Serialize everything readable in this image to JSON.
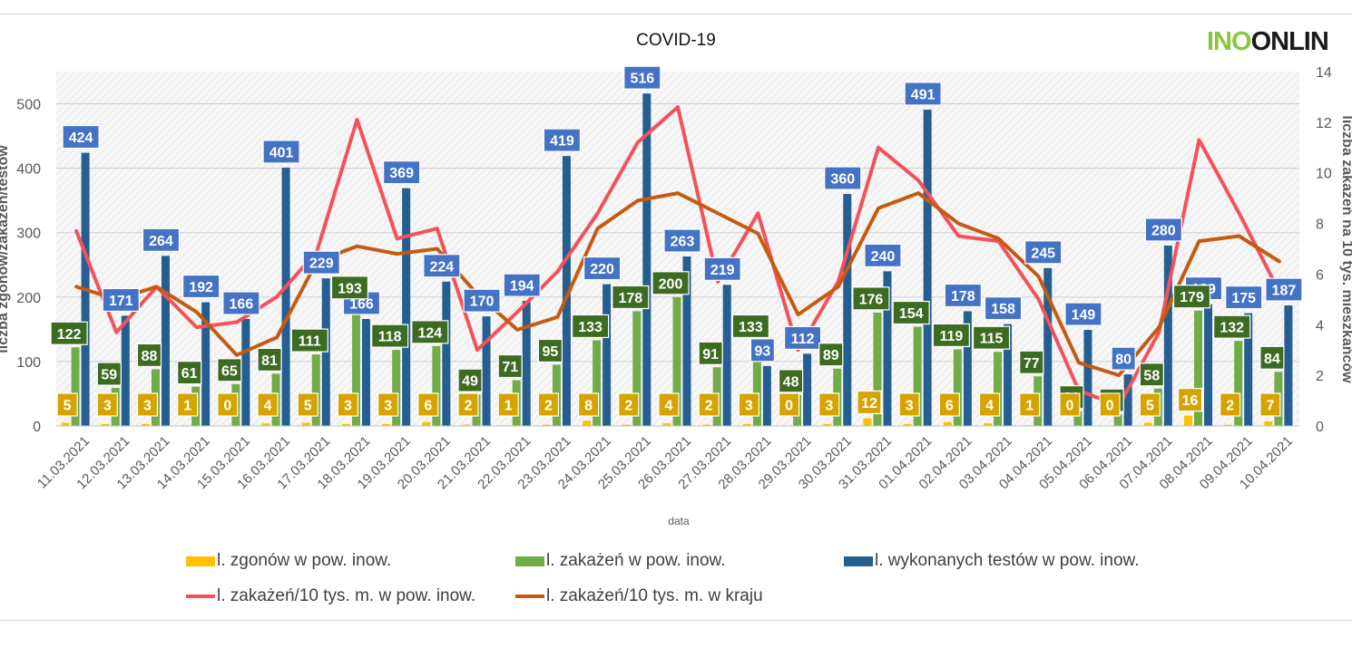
{
  "logo": {
    "part1": "INO",
    "part2": "ONLIN"
  },
  "chart_data": {
    "type": "bar",
    "title": "COVID-19",
    "xlabel": "data",
    "ylabel": "liczba zgonów/zakażeń/testów",
    "y2label": "liczba zakażeń na 10 tys. mieszkańców",
    "ylim": [
      0,
      550
    ],
    "y2lim": [
      0,
      14
    ],
    "yticks": [
      0,
      100,
      200,
      300,
      400,
      500
    ],
    "y2ticks": [
      0,
      2,
      4,
      6,
      8,
      10,
      12,
      14
    ],
    "categories": [
      "11.03.2021",
      "12.03.2021",
      "13.03.2021",
      "14.03.2021",
      "15.03.2021",
      "16.03.2021",
      "17.03.2021",
      "18.03.2021",
      "19.03.2021",
      "20.03.2021",
      "21.03.2021",
      "22.03.2021",
      "23.03.2021",
      "24.03.2021",
      "25.03.2021",
      "26.03.2021",
      "27.03.2021",
      "28.03.2021",
      "29.03.2021",
      "30.03.2021",
      "31.03.2021",
      "01.04.2021",
      "02.04.2021",
      "03.04.2021",
      "04.04.2021",
      "05.04.2021",
      "06.04.2021",
      "07.04.2021",
      "08.04.2021",
      "09.04.2021",
      "10.04.2021"
    ],
    "series": [
      {
        "name": "l. zgonów w pow. inow.",
        "kind": "bar",
        "color": "#ffc000",
        "label_bg": "#d6a400",
        "values": [
          5,
          3,
          3,
          1,
          0,
          4,
          5,
          3,
          3,
          6,
          2,
          1,
          2,
          8,
          2,
          4,
          2,
          3,
          0,
          3,
          12,
          3,
          6,
          4,
          1,
          0,
          0,
          5,
          16,
          2,
          7
        ]
      },
      {
        "name": "l. zakażeń w pow. inow.",
        "kind": "bar",
        "color": "#70ad47",
        "label_bg": "#3e6b22",
        "values": [
          122,
          59,
          88,
          61,
          65,
          81,
          111,
          193,
          118,
          124,
          49,
          71,
          95,
          133,
          178,
          200,
          91,
          133,
          48,
          89,
          176,
          154,
          119,
          115,
          77,
          23,
          18,
          58,
          179,
          132,
          84
        ]
      },
      {
        "name": "l. wykonanych testów w pow. inow.",
        "kind": "bar",
        "color": "#255e91",
        "label_bg": "#4472c4",
        "values": [
          424,
          171,
          264,
          192,
          166,
          401,
          229,
          166,
          369,
          224,
          170,
          194,
          419,
          220,
          516,
          263,
          219,
          93,
          112,
          360,
          240,
          491,
          178,
          158,
          245,
          149,
          80,
          280,
          189,
          175,
          187
        ]
      },
      {
        "name": "l. zakażeń/10 tys. m. w pow. inow.",
        "kind": "line",
        "color": "#f4515a",
        "values": [
          7.7,
          3.7,
          5.5,
          3.9,
          4.1,
          5.1,
          6.9,
          12.1,
          7.4,
          7.8,
          3.0,
          4.5,
          6.1,
          8.4,
          11.2,
          12.6,
          5.7,
          8.4,
          3.0,
          5.7,
          11.0,
          9.7,
          7.5,
          7.3,
          5.0,
          1.4,
          0.8,
          3.7,
          11.3,
          8.4,
          5.3
        ]
      },
      {
        "name": "l. zakażeń/10 tys. m. w kraju",
        "kind": "line",
        "color": "#c55a11",
        "values": [
          5.5,
          5.0,
          5.5,
          4.5,
          2.8,
          3.5,
          6.5,
          7.1,
          6.8,
          7.0,
          5.2,
          3.8,
          4.3,
          7.8,
          8.9,
          9.2,
          8.4,
          7.6,
          4.4,
          5.5,
          8.6,
          9.2,
          8.0,
          7.4,
          5.9,
          2.5,
          2.0,
          3.9,
          7.3,
          7.5,
          6.5
        ]
      }
    ]
  }
}
